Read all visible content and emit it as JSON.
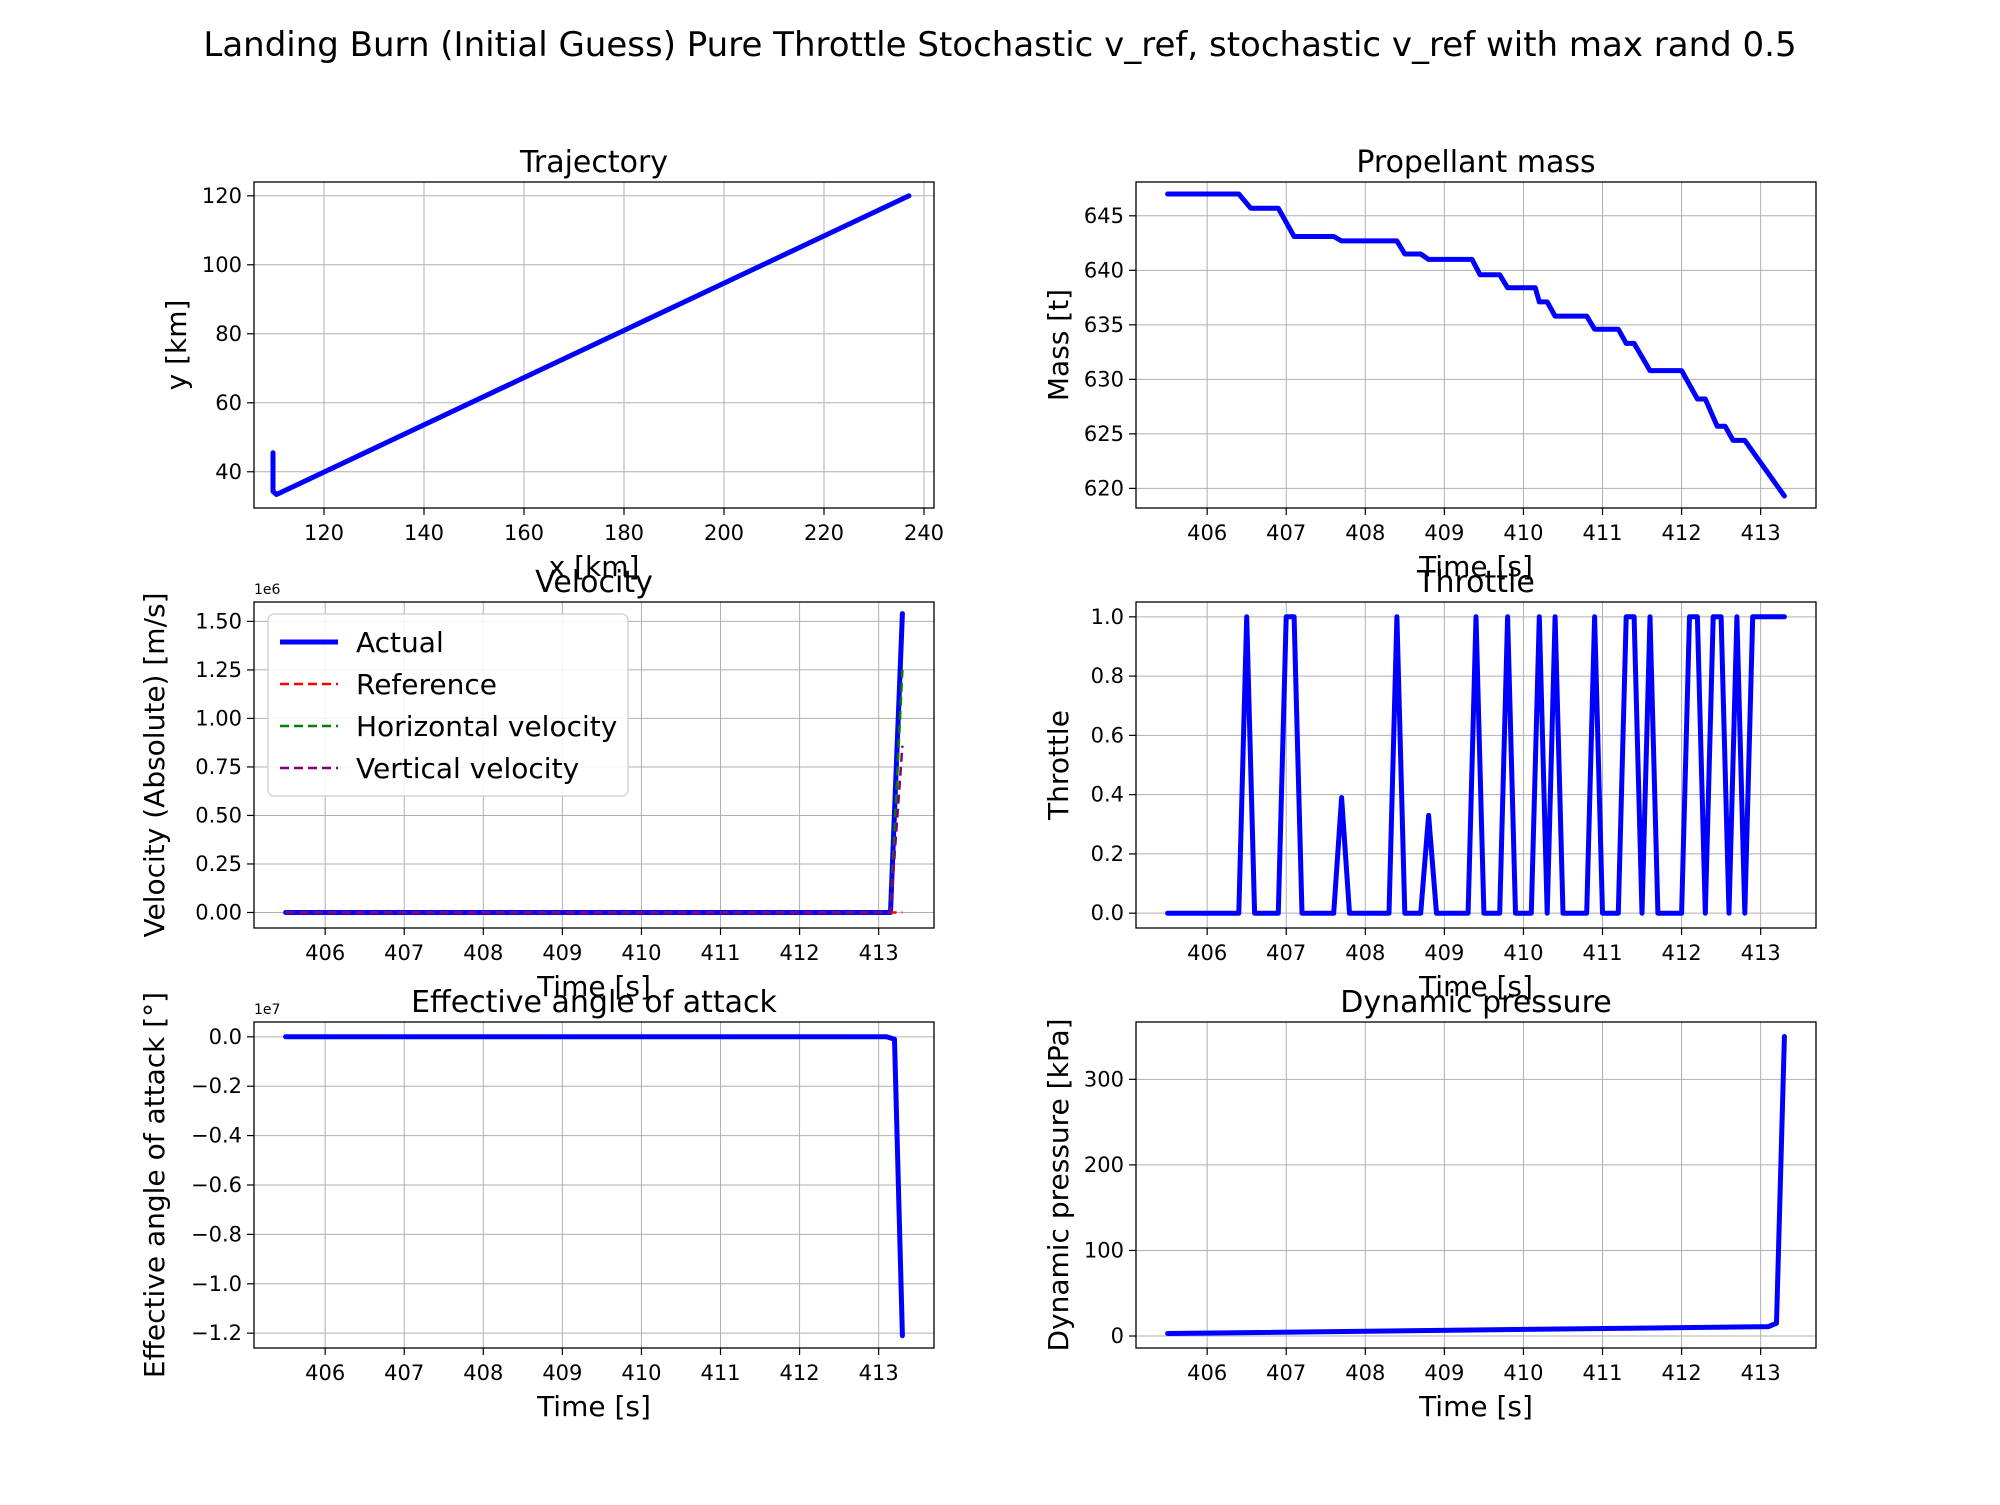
{
  "figure": {
    "title": "Landing Burn (Initial Guess) Pure Throttle Stochastic v_ref, stochastic v_ref with max rand 0.5"
  },
  "colors": {
    "blue": "#0000ff",
    "red": "#ff0000",
    "green": "#008000",
    "purple": "#800080"
  },
  "chart_data": [
    {
      "id": "trajectory",
      "type": "line",
      "title": "Trajectory",
      "xlabel": "x [km]",
      "ylabel": "y [km]",
      "xlim": [
        106,
        242
      ],
      "ylim": [
        29.5,
        124
      ],
      "xticks": [
        120,
        140,
        160,
        180,
        200,
        220,
        240
      ],
      "yticks": [
        40,
        60,
        80,
        100,
        120
      ],
      "offset_text": "",
      "series": [
        {
          "color": "#0000ff",
          "dashed": false,
          "x": [
            237,
            110.5,
            109.8,
            109.8
          ],
          "y": [
            120,
            33.4,
            34.3,
            45.5
          ]
        }
      ]
    },
    {
      "id": "propellant-mass",
      "type": "line",
      "title": "Propellant mass",
      "xlabel": "Time [s]",
      "ylabel": "Mass [t]",
      "xlim": [
        405.1,
        413.7
      ],
      "ylim": [
        618.2,
        648.1
      ],
      "xticks": [
        406,
        407,
        408,
        409,
        410,
        411,
        412,
        413
      ],
      "yticks": [
        620,
        625,
        630,
        635,
        640,
        645
      ],
      "offset_text": "",
      "series": [
        {
          "color": "#0000ff",
          "dashed": false,
          "x": [
            405.5,
            406.4,
            406.55,
            406.9,
            407.1,
            407.6,
            407.7,
            408.4,
            408.5,
            408.7,
            408.8,
            409.35,
            409.45,
            409.7,
            409.8,
            410.15,
            410.2,
            410.3,
            410.4,
            410.8,
            410.9,
            411.2,
            411.3,
            411.4,
            411.6,
            412.0,
            412.2,
            412.3,
            412.45,
            412.55,
            412.65,
            412.8,
            413.3
          ],
          "y": [
            647,
            647,
            645.7,
            645.7,
            643.1,
            643.1,
            642.7,
            642.7,
            641.5,
            641.5,
            641.0,
            641.0,
            639.6,
            639.6,
            638.4,
            638.4,
            637.1,
            637.1,
            635.8,
            635.8,
            634.6,
            634.6,
            633.3,
            633.3,
            630.8,
            630.8,
            628.2,
            628.2,
            625.7,
            625.7,
            624.4,
            624.4,
            619.3
          ]
        }
      ]
    },
    {
      "id": "velocity",
      "type": "line",
      "title": "Velocity",
      "xlabel": "Time [s]",
      "ylabel": "Velocity (Absolute) [m/s]",
      "xlim": [
        405.1,
        413.7
      ],
      "ylim": [
        -0.08,
        1.6
      ],
      "xticks": [
        406,
        407,
        408,
        409,
        410,
        411,
        412,
        413
      ],
      "yticks": [
        0.0,
        0.25,
        0.5,
        0.75,
        1.0,
        1.25,
        1.5
      ],
      "ytick_decimals": 2,
      "offset_text": "1e6",
      "legend": {
        "loc": "upper-left"
      },
      "series": [
        {
          "name": "Actual",
          "color": "#0000ff",
          "dashed": false,
          "x": [
            405.5,
            413.15,
            413.3
          ],
          "y": [
            0,
            0,
            1.54
          ]
        },
        {
          "name": "Reference",
          "color": "#ff0000",
          "dashed": true,
          "x": [
            405.5,
            413.3
          ],
          "y": [
            0,
            0
          ]
        },
        {
          "name": "Horizontal velocity",
          "color": "#008000",
          "dashed": true,
          "x": [
            405.5,
            413.15,
            413.3
          ],
          "y": [
            0,
            0,
            1.25
          ]
        },
        {
          "name": "Vertical velocity",
          "color": "#800080",
          "dashed": true,
          "x": [
            405.5,
            413.15,
            413.3
          ],
          "y": [
            0,
            0,
            0.86
          ]
        }
      ]
    },
    {
      "id": "throttle",
      "type": "line",
      "title": "Throttle",
      "xlabel": "Time [s]",
      "ylabel": "Throttle",
      "xlim": [
        405.1,
        413.7
      ],
      "ylim": [
        -0.05,
        1.05
      ],
      "xticks": [
        406,
        407,
        408,
        409,
        410,
        411,
        412,
        413
      ],
      "yticks": [
        0.0,
        0.2,
        0.4,
        0.6,
        0.8,
        1.0
      ],
      "ytick_decimals": 1,
      "offset_text": "",
      "series": [
        {
          "color": "#0000ff",
          "dashed": false,
          "x": [
            405.5,
            406.4,
            406.5,
            406.6,
            406.9,
            407.0,
            407.1,
            407.2,
            407.6,
            407.7,
            407.8,
            408.3,
            408.4,
            408.5,
            408.7,
            408.8,
            408.9,
            409.3,
            409.4,
            409.5,
            409.7,
            409.8,
            409.9,
            410.1,
            410.2,
            410.3,
            410.4,
            410.5,
            410.8,
            410.9,
            411.0,
            411.2,
            411.3,
            411.4,
            411.5,
            411.6,
            411.7,
            412.0,
            412.1,
            412.2,
            412.3,
            412.4,
            412.5,
            412.6,
            412.7,
            412.8,
            412.9,
            413.3
          ],
          "y": [
            0,
            0,
            1,
            0,
            0,
            1,
            1,
            0,
            0,
            0.39,
            0,
            0,
            1,
            0,
            0,
            0.33,
            0,
            0,
            1,
            0,
            0,
            1,
            0,
            0,
            1,
            0,
            1,
            0,
            0,
            1,
            0,
            0,
            1,
            1,
            0,
            1,
            0,
            0,
            1,
            1,
            0,
            1,
            1,
            0,
            1,
            0,
            1,
            1
          ]
        }
      ]
    },
    {
      "id": "angle-of-attack",
      "type": "line",
      "title": "Effective angle of attack",
      "xlabel": "Time [s]",
      "ylabel": "Effective angle of attack [°]",
      "xlim": [
        405.1,
        413.7
      ],
      "ylim": [
        -1.26,
        0.06
      ],
      "xticks": [
        406,
        407,
        408,
        409,
        410,
        411,
        412,
        413
      ],
      "yticks": [
        0.0,
        -0.2,
        -0.4,
        -0.6,
        -0.8,
        -1.0,
        -1.2
      ],
      "ytick_decimals": 1,
      "offset_text": "1e7",
      "series": [
        {
          "color": "#0000ff",
          "dashed": false,
          "x": [
            405.5,
            413.1,
            413.2,
            413.3
          ],
          "y": [
            0,
            0,
            -0.01,
            -1.21
          ]
        }
      ]
    },
    {
      "id": "dynamic-pressure",
      "type": "line",
      "title": "Dynamic pressure",
      "xlabel": "Time [s]",
      "ylabel": "Dynamic pressure [kPa]",
      "xlim": [
        405.1,
        413.7
      ],
      "ylim": [
        -14,
        367
      ],
      "xticks": [
        406,
        407,
        408,
        409,
        410,
        411,
        412,
        413
      ],
      "yticks": [
        0,
        100,
        200,
        300
      ],
      "offset_text": "",
      "series": [
        {
          "color": "#0000ff",
          "dashed": false,
          "x": [
            405.5,
            413.1,
            413.2,
            413.3
          ],
          "y": [
            3,
            11,
            15,
            350
          ]
        }
      ]
    }
  ]
}
